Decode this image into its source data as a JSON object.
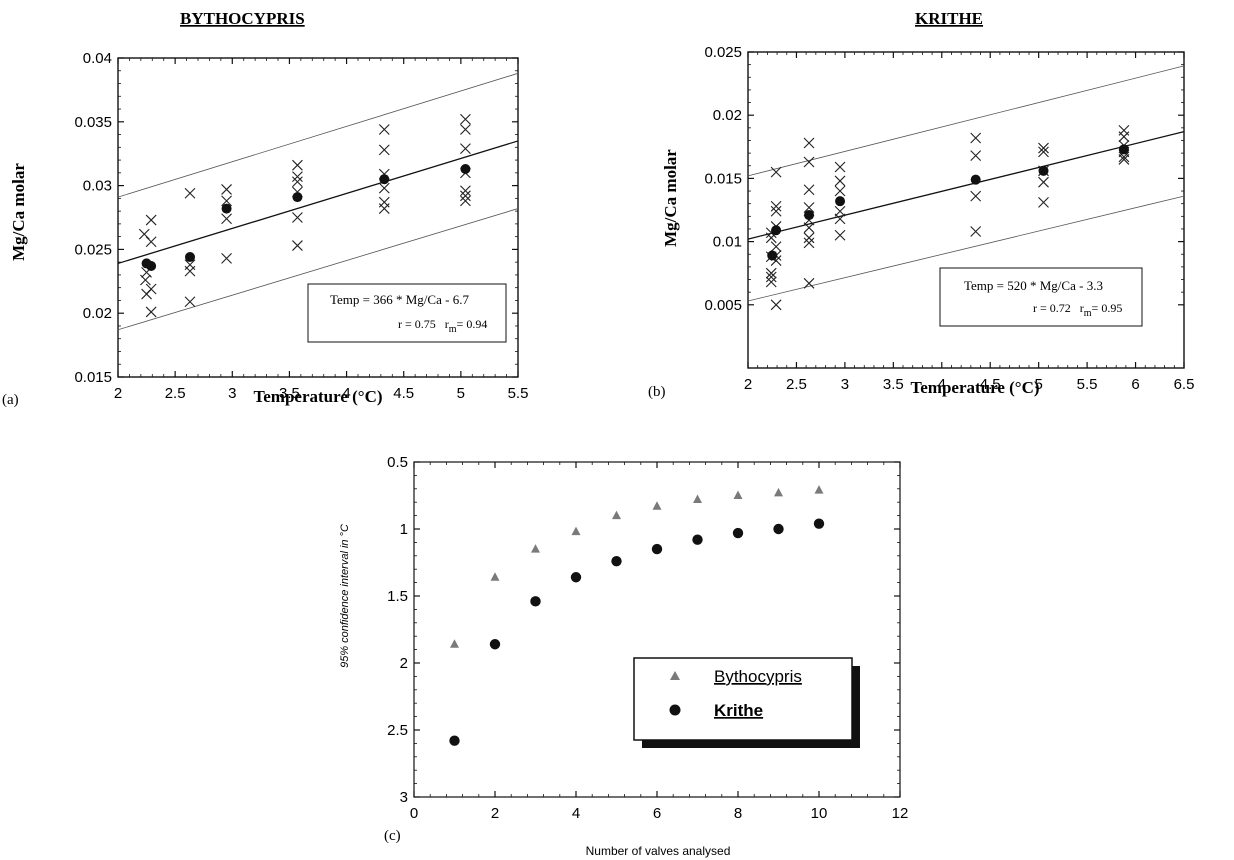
{
  "chart_data": [
    {
      "panel_label": "(a)",
      "type": "scatter",
      "title": "BYTHOCYPRIS",
      "xlabel": "Temperature (°C)",
      "ylabel": "Mg/Ca molar",
      "xlim": [
        2,
        5.5
      ],
      "ylim": [
        0.015,
        0.04
      ],
      "xticks": [
        "2",
        "2.5",
        "3",
        "3.5",
        "4",
        "4.5",
        "5",
        "5.5"
      ],
      "yticks": [
        "0.015",
        "0.02",
        "0.025",
        "0.03",
        "0.035",
        "0.04"
      ],
      "equation": "Temp = 366 *  Mg/Ca - 6.7",
      "stats": {
        "r": "r = 0.75",
        "rm_label": "r",
        "rm_sub": "m",
        "rm_value": "= 0.94"
      },
      "series": [
        {
          "marker": "cross",
          "points": [
            [
              2.23,
              0.0262
            ],
            [
              2.25,
              0.0232
            ],
            [
              2.24,
              0.0226
            ],
            [
              2.25,
              0.0215
            ],
            [
              2.29,
              0.0273
            ],
            [
              2.29,
              0.0256
            ],
            [
              2.29,
              0.0219
            ],
            [
              2.29,
              0.0201
            ],
            [
              2.63,
              0.0294
            ],
            [
              2.63,
              0.0238
            ],
            [
              2.63,
              0.0233
            ],
            [
              2.63,
              0.0209
            ],
            [
              2.95,
              0.0297
            ],
            [
              2.95,
              0.0288
            ],
            [
              2.95,
              0.0274
            ],
            [
              2.95,
              0.0243
            ],
            [
              3.57,
              0.0316
            ],
            [
              3.57,
              0.0307
            ],
            [
              3.57,
              0.0303
            ],
            [
              3.57,
              0.0295
            ],
            [
              3.57,
              0.0275
            ],
            [
              3.57,
              0.0253
            ],
            [
              4.33,
              0.0344
            ],
            [
              4.33,
              0.0328
            ],
            [
              4.33,
              0.0309
            ],
            [
              4.33,
              0.0298
            ],
            [
              4.33,
              0.0287
            ],
            [
              4.33,
              0.0282
            ],
            [
              5.04,
              0.0352
            ],
            [
              5.04,
              0.0344
            ],
            [
              5.04,
              0.0329
            ],
            [
              5.04,
              0.031
            ],
            [
              5.04,
              0.0296
            ],
            [
              5.04,
              0.0292
            ],
            [
              5.04,
              0.0288
            ]
          ]
        },
        {
          "marker": "mean",
          "points": [
            [
              2.25,
              0.0239
            ],
            [
              2.29,
              0.0237
            ],
            [
              2.63,
              0.0244
            ],
            [
              2.95,
              0.0282
            ],
            [
              3.57,
              0.0291
            ],
            [
              4.33,
              0.0305
            ],
            [
              5.04,
              0.0313
            ]
          ]
        }
      ],
      "regression": [
        [
          2,
          0.0239
        ],
        [
          5.5,
          0.0335
        ]
      ],
      "confidence_upper": [
        [
          2,
          0.0291
        ],
        [
          5.5,
          0.0388
        ]
      ],
      "confidence_lower": [
        [
          2,
          0.0187
        ],
        [
          5.5,
          0.0282
        ]
      ]
    },
    {
      "panel_label": "(b)",
      "type": "scatter",
      "title": "KRITHE",
      "xlabel": "Temperature (°C)",
      "ylabel": "Mg/Ca molar",
      "xlim": [
        2,
        6.5
      ],
      "ylim": [
        0,
        0.025
      ],
      "xticks": [
        "2",
        "2.5",
        "3",
        "3.5",
        "4",
        "4.5",
        "5",
        "5.5",
        "6",
        "6.5"
      ],
      "yticks": [
        "0.005",
        "0.01",
        "0.015",
        "0.02",
        "0.025"
      ],
      "equation": "Temp = 520 * Mg/Ca - 3.3",
      "stats": {
        "r": "r = 0.72",
        "rm_label": "r",
        "rm_sub": "m",
        "rm_value": "= 0.95"
      },
      "series": [
        {
          "marker": "cross",
          "points": [
            [
              2.24,
              0.0107
            ],
            [
              2.24,
              0.0103
            ],
            [
              2.24,
              0.0088
            ],
            [
              2.24,
              0.0075
            ],
            [
              2.24,
              0.0072
            ],
            [
              2.24,
              0.0068
            ],
            [
              2.29,
              0.0155
            ],
            [
              2.29,
              0.0128
            ],
            [
              2.29,
              0.0124
            ],
            [
              2.29,
              0.0112
            ],
            [
              2.29,
              0.0096
            ],
            [
              2.29,
              0.0089
            ],
            [
              2.29,
              0.0085
            ],
            [
              2.29,
              0.005
            ],
            [
              2.63,
              0.0178
            ],
            [
              2.63,
              0.0163
            ],
            [
              2.63,
              0.0141
            ],
            [
              2.63,
              0.0127
            ],
            [
              2.63,
              0.0117
            ],
            [
              2.63,
              0.0111
            ],
            [
              2.63,
              0.0103
            ],
            [
              2.63,
              0.0099
            ],
            [
              2.63,
              0.0067
            ],
            [
              2.95,
              0.0159
            ],
            [
              2.95,
              0.0148
            ],
            [
              2.95,
              0.014
            ],
            [
              2.95,
              0.0124
            ],
            [
              2.95,
              0.0118
            ],
            [
              2.95,
              0.0105
            ],
            [
              4.35,
              0.0182
            ],
            [
              4.35,
              0.0168
            ],
            [
              4.35,
              0.0136
            ],
            [
              4.35,
              0.0108
            ],
            [
              5.05,
              0.0174
            ],
            [
              5.05,
              0.0171
            ],
            [
              5.05,
              0.0156
            ],
            [
              5.05,
              0.0147
            ],
            [
              5.05,
              0.0131
            ],
            [
              5.88,
              0.0188
            ],
            [
              5.88,
              0.0183
            ],
            [
              5.88,
              0.0176
            ],
            [
              5.88,
              0.0171
            ],
            [
              5.88,
              0.0167
            ],
            [
              5.88,
              0.0165
            ]
          ]
        },
        {
          "marker": "mean",
          "points": [
            [
              2.25,
              0.0089
            ],
            [
              2.29,
              0.0109
            ],
            [
              2.63,
              0.0121
            ],
            [
              2.95,
              0.0132
            ],
            [
              4.35,
              0.0149
            ],
            [
              5.05,
              0.0156
            ],
            [
              5.88,
              0.0173
            ]
          ]
        }
      ],
      "regression": [
        [
          2,
          0.0102
        ],
        [
          6.5,
          0.0187
        ]
      ],
      "confidence_upper": [
        [
          2,
          0.0152
        ],
        [
          6.5,
          0.0239
        ]
      ],
      "confidence_lower": [
        [
          2,
          0.0053
        ],
        [
          6.5,
          0.0136
        ]
      ]
    },
    {
      "panel_label": "(c)",
      "type": "scatter",
      "title": "",
      "xlabel": "Number of valves analysed",
      "ylabel": "95% confidence interval in °C",
      "xlim": [
        0,
        12
      ],
      "ylim": [
        3,
        0.5
      ],
      "y_inverted": true,
      "xticks": [
        "0",
        "2",
        "4",
        "6",
        "8",
        "10",
        "12"
      ],
      "yticks": [
        "0.5",
        "1",
        "1.5",
        "2",
        "2.5",
        "3"
      ],
      "legend_position": "bottom-right",
      "series": [
        {
          "name": "Bythocypris",
          "marker": "triangle",
          "color": "#7a7a7a",
          "x": [
            1,
            2,
            3,
            4,
            5,
            6,
            7,
            8,
            9,
            10
          ],
          "y": [
            1.86,
            1.36,
            1.15,
            1.02,
            0.9,
            0.83,
            0.78,
            0.75,
            0.73,
            0.71
          ]
        },
        {
          "name": "Krithe",
          "marker": "circle",
          "color": "#111111",
          "x": [
            1,
            2,
            3,
            4,
            5,
            6,
            7,
            8,
            9,
            10
          ],
          "y": [
            2.58,
            1.86,
            1.54,
            1.36,
            1.24,
            1.15,
            1.08,
            1.03,
            1.0,
            0.96
          ]
        }
      ]
    }
  ]
}
